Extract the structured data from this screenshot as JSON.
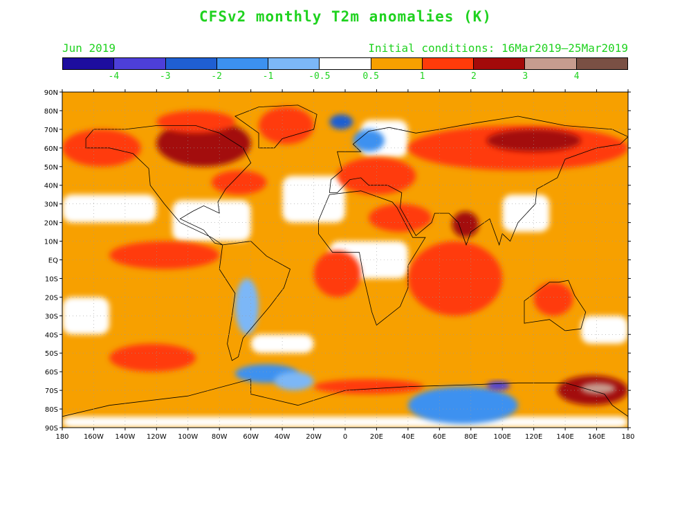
{
  "title": "CFSv2 monthly T2m anomalies (K)",
  "valid_month": "Jun 2019",
  "initial_conditions": "Initial conditions: 16Mar2019–25Mar2019",
  "colorbar": {
    "colors": [
      "#1d0d9e",
      "#4d3fd9",
      "#1f5fd2",
      "#3c91f0",
      "#7cb7f7",
      "#ffffff",
      "#f7a000",
      "#ff3b0a",
      "#a30a0a",
      "#c79c8f",
      "#7a5044"
    ],
    "labels": [
      "-4",
      "-3",
      "-2",
      "-1",
      "-0.5",
      "0.5",
      "1",
      "2",
      "3",
      "4"
    ]
  },
  "axes": {
    "lat_labels": [
      "90N",
      "80N",
      "70N",
      "60N",
      "50N",
      "40N",
      "30N",
      "20N",
      "10N",
      "EQ",
      "10S",
      "20S",
      "30S",
      "40S",
      "50S",
      "60S",
      "70S",
      "80S",
      "90S"
    ],
    "lon_labels": [
      "180",
      "160W",
      "140W",
      "120W",
      "100W",
      "80W",
      "60W",
      "40W",
      "20W",
      "0",
      "20E",
      "40E",
      "60E",
      "80E",
      "100E",
      "120E",
      "140E",
      "160E",
      "180"
    ]
  },
  "chart_data": {
    "type": "heatmap",
    "title": "CFSv2 monthly T2m anomalies (K)",
    "units": "K",
    "xlim": [
      -180,
      180
    ],
    "ylim": [
      -90,
      90
    ],
    "contour_levels": [
      -4,
      -3,
      -2,
      -1,
      -0.5,
      0.5,
      1,
      2,
      3,
      4
    ],
    "grid": true,
    "regions": [
      {
        "name": "N Pacific / Alaska warm",
        "lon": [
          -180,
          -130
        ],
        "lat": [
          50,
          70
        ],
        "class": 7
      },
      {
        "name": "Canada / Hudson Bay warm",
        "lon": [
          -120,
          -60
        ],
        "lat": [
          50,
          75
        ],
        "class": 8
      },
      {
        "name": "Canadian Arctic islands warm",
        "lon": [
          -120,
          -70
        ],
        "lat": [
          68,
          80
        ],
        "class": 7
      },
      {
        "name": "Greenland warm",
        "lon": [
          -55,
          -20
        ],
        "lat": [
          62,
          82
        ],
        "class": 7
      },
      {
        "name": "E US / NW Atlantic warm",
        "lon": [
          -85,
          -50
        ],
        "lat": [
          35,
          48
        ],
        "class": 7
      },
      {
        "name": "E Pacific equatorial warm",
        "lon": [
          -150,
          -80
        ],
        "lat": [
          -5,
          10
        ],
        "class": 7
      },
      {
        "name": "S Atlantic warm",
        "lon": [
          -20,
          10
        ],
        "lat": [
          -20,
          5
        ],
        "class": 7
      },
      {
        "name": "Europe / Mediterranean warm",
        "lon": [
          -5,
          45
        ],
        "lat": [
          35,
          55
        ],
        "class": 7
      },
      {
        "name": "Arabia / Persian Gulf warm",
        "lon": [
          15,
          55
        ],
        "lat": [
          15,
          30
        ],
        "class": 7
      },
      {
        "name": "India hot",
        "lon": [
          68,
          85
        ],
        "lat": [
          12,
          26
        ],
        "class": 8
      },
      {
        "name": "Indian Ocean warm",
        "lon": [
          40,
          100
        ],
        "lat": [
          -30,
          10
        ],
        "class": 7
      },
      {
        "name": "Siberia / Russia warm",
        "lon": [
          40,
          180
        ],
        "lat": [
          48,
          72
        ],
        "class": 7
      },
      {
        "name": "N Siberia hot",
        "lon": [
          90,
          150
        ],
        "lat": [
          58,
          70
        ],
        "class": 8
      },
      {
        "name": "Australia warm",
        "lon": [
          120,
          145
        ],
        "lat": [
          -30,
          -12
        ],
        "class": 7
      },
      {
        "name": "S Pacific warm",
        "lon": [
          -150,
          -95
        ],
        "lat": [
          -60,
          -45
        ],
        "class": 7
      },
      {
        "name": "Southern Ocean warm band",
        "lon": [
          -20,
          50
        ],
        "lat": [
          -72,
          -64
        ],
        "class": 7
      },
      {
        "name": "Ross Sea warm",
        "lon": [
          135,
          180
        ],
        "lat": [
          -78,
          -62
        ],
        "class": 8
      },
      {
        "name": "Ross Sea very warm",
        "lon": [
          150,
          172
        ],
        "lat": [
          -72,
          -66
        ],
        "class": 9
      },
      {
        "name": "Antarctica cool",
        "lon": [
          40,
          110
        ],
        "lat": [
          -88,
          -68
        ],
        "class": 3
      },
      {
        "name": "Antarctica cold spot",
        "lon": [
          90,
          105
        ],
        "lat": [
          -70,
          -65
        ],
        "class": 1
      },
      {
        "name": "Drake Passage cool",
        "lon": [
          -70,
          -30
        ],
        "lat": [
          -66,
          -56
        ],
        "class": 3
      },
      {
        "name": "Weddell Sea cool",
        "lon": [
          -45,
          -20
        ],
        "lat": [
          -70,
          -60
        ],
        "class": 4
      },
      {
        "name": "South America cool",
        "lon": [
          -70,
          -55
        ],
        "lat": [
          -40,
          -10
        ],
        "class": 4
      },
      {
        "name": "Norway / Scandinavia cool",
        "lon": [
          5,
          25
        ],
        "lat": [
          58,
          70
        ],
        "class": 3
      },
      {
        "name": "Kara Sea cool",
        "lon": [
          -10,
          5
        ],
        "lat": [
          70,
          78
        ],
        "class": 2
      }
    ]
  }
}
